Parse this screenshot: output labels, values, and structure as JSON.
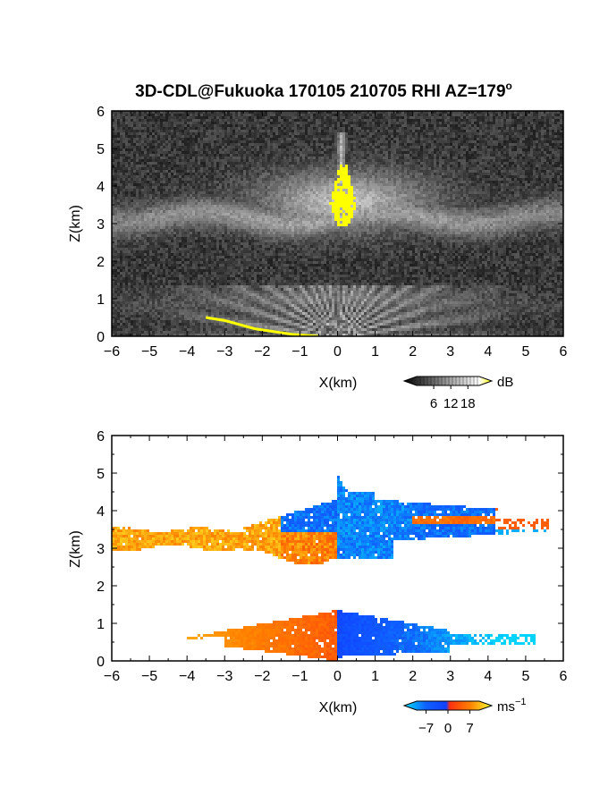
{
  "title": "3D-CDL@Fukuoka 170105 210705 RHI AZ=179",
  "title_superscript": "o",
  "chart_data": [
    {
      "type": "heatmap",
      "panel": "reflectivity",
      "xlabel": "X(km)",
      "ylabel": "Z(km)",
      "xlim": [
        -6,
        6
      ],
      "ylim": [
        0,
        6
      ],
      "xticks": [
        "−6",
        "−5",
        "−4",
        "−3",
        "−2",
        "−1",
        "0",
        "1",
        "2",
        "3",
        "4",
        "5",
        "6"
      ],
      "yticks": [
        "0",
        "1",
        "2",
        "3",
        "4",
        "5",
        "6"
      ],
      "background": "noisy grey speckle",
      "features": {
        "cloud_layer": {
          "x": [
            -6,
            6
          ],
          "z_bottom": 2.7,
          "z_top": 3.6,
          "peak_z": 4.5
        },
        "saturated_core": {
          "x": [
            -0.8,
            1.0
          ],
          "z": [
            2.9,
            4.6
          ],
          "color": "#ffff00"
        },
        "near_surface_fan": {
          "x": [
            -6,
            6
          ],
          "z": [
            0,
            1.3
          ]
        },
        "surface_clutter_line": [
          [
            -3.5,
            0.5
          ],
          [
            -3.0,
            0.42
          ],
          [
            -2.2,
            0.2
          ],
          [
            -1.2,
            0.05
          ],
          [
            -0.5,
            0.0
          ]
        ]
      },
      "colorbar": {
        "unit": "dB",
        "ticks": [
          "6",
          "12",
          "18"
        ],
        "range": [
          0,
          22
        ],
        "colors": [
          "#000000",
          "#ffffff",
          "#ffff00"
        ]
      }
    },
    {
      "type": "heatmap",
      "panel": "doppler_velocity",
      "xlabel": "X(km)",
      "ylabel": "Z(km)",
      "xlim": [
        -6,
        6
      ],
      "ylim": [
        0,
        6
      ],
      "xticks": [
        "−6",
        "−5",
        "−4",
        "−3",
        "−2",
        "−1",
        "0",
        "1",
        "2",
        "3",
        "4",
        "5",
        "6"
      ],
      "yticks": [
        "0",
        "1",
        "2",
        "3",
        "4",
        "5",
        "6"
      ],
      "features": {
        "upper_layer": {
          "x": [
            -6,
            5.6
          ],
          "z": [
            2.6,
            5.0
          ],
          "velocity_left": 7,
          "velocity_core": -5,
          "velocity_right": 3
        },
        "lower_layer": {
          "x": [
            -4.7,
            5.3
          ],
          "z": [
            0,
            1.4
          ],
          "velocity_left": 7,
          "velocity_right": -7
        }
      },
      "colorbar": {
        "unit": "ms",
        "unit_superscript": "−1",
        "ticks": [
          "−7",
          "0",
          "7"
        ],
        "range": [
          -10,
          10
        ],
        "colors": [
          "#00d8ff",
          "#0040ff",
          "#ff2000",
          "#ffff40"
        ]
      }
    }
  ]
}
